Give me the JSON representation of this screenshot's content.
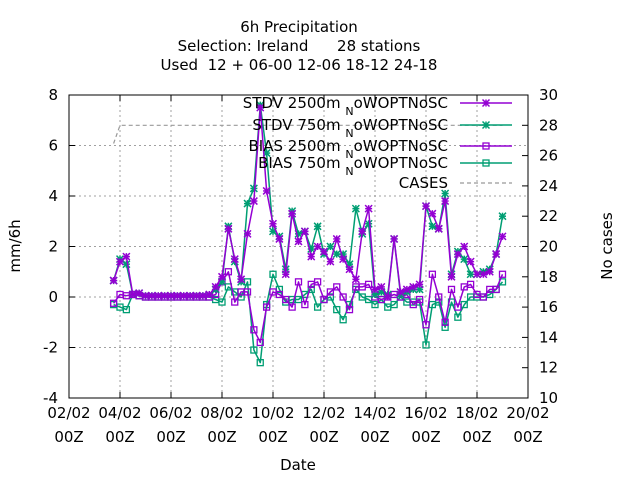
{
  "chart_data": {
    "type": "line",
    "title_lines": [
      "6h Precipitation",
      "Selection: Ireland      28 stations",
      "Used  12 + 06-00 12-06 18-12 24-18"
    ],
    "xlabel": "Date",
    "ylabel": "mm/6h",
    "y2label": "No cases",
    "ylim": [
      -4,
      8
    ],
    "y2lim": [
      10,
      30
    ],
    "xlim": [
      0,
      18
    ],
    "grid": true,
    "legend_position": "top-right",
    "x_ticks": [
      {
        "x": 0,
        "l1": "02/02",
        "l2": "00Z"
      },
      {
        "x": 2,
        "l1": "04/02",
        "l2": "00Z"
      },
      {
        "x": 4,
        "l1": "06/02",
        "l2": "00Z"
      },
      {
        "x": 6,
        "l1": "08/02",
        "l2": "00Z"
      },
      {
        "x": 8,
        "l1": "10/02",
        "l2": "00Z"
      },
      {
        "x": 10,
        "l1": "12/02",
        "l2": "00Z"
      },
      {
        "x": 12,
        "l1": "14/02",
        "l2": "00Z"
      },
      {
        "x": 14,
        "l1": "16/02",
        "l2": "00Z"
      },
      {
        "x": 16,
        "l1": "18/02",
        "l2": "00Z"
      },
      {
        "x": 18,
        "l1": "20/02",
        "l2": "00Z"
      }
    ],
    "y_ticks": [
      -4,
      -2,
      0,
      2,
      4,
      6,
      8
    ],
    "y2_ticks": [
      10,
      12,
      14,
      16,
      18,
      20,
      22,
      24,
      26,
      28,
      30
    ],
    "series": [
      {
        "name": "STDV 2500m",
        "name_sub": "N",
        "name_suffix": "oWOPTNoSC",
        "color": "#9400d3",
        "marker": "star",
        "axis": "y1",
        "points": [
          [
            1.75,
            0.65
          ],
          [
            2.0,
            1.4
          ],
          [
            2.25,
            1.6
          ],
          [
            2.5,
            0.1
          ],
          [
            2.75,
            0.15
          ],
          [
            3.0,
            0.05
          ],
          [
            3.25,
            0.05
          ],
          [
            3.5,
            0.05
          ],
          [
            3.75,
            0.05
          ],
          [
            4.0,
            0.05
          ],
          [
            4.25,
            0.05
          ],
          [
            4.5,
            0.05
          ],
          [
            4.75,
            0.05
          ],
          [
            5.0,
            0.05
          ],
          [
            5.25,
            0.05
          ],
          [
            5.5,
            0.1
          ],
          [
            5.75,
            0.4
          ],
          [
            6.0,
            0.8
          ],
          [
            6.25,
            2.7
          ],
          [
            6.5,
            1.5
          ],
          [
            6.75,
            0.7
          ],
          [
            7.0,
            2.5
          ],
          [
            7.25,
            3.8
          ],
          [
            7.5,
            7.5
          ],
          [
            7.75,
            4.2
          ],
          [
            8.0,
            2.9
          ],
          [
            8.25,
            2.3
          ],
          [
            8.5,
            0.9
          ],
          [
            8.75,
            3.3
          ],
          [
            9.0,
            2.2
          ],
          [
            9.25,
            2.6
          ],
          [
            9.5,
            1.6
          ],
          [
            9.75,
            2.0
          ],
          [
            10.0,
            1.8
          ],
          [
            10.25,
            1.4
          ],
          [
            10.5,
            2.3
          ],
          [
            10.75,
            1.5
          ],
          [
            11.0,
            1.1
          ],
          [
            11.25,
            0.7
          ],
          [
            11.5,
            2.6
          ],
          [
            11.75,
            3.5
          ],
          [
            12.0,
            0.3
          ],
          [
            12.25,
            0.4
          ],
          [
            12.5,
            0.0
          ],
          [
            12.75,
            2.3
          ],
          [
            13.0,
            0.2
          ],
          [
            13.25,
            0.3
          ],
          [
            13.5,
            0.4
          ],
          [
            13.75,
            0.5
          ],
          [
            14.0,
            3.6
          ],
          [
            14.25,
            3.3
          ],
          [
            14.5,
            2.7
          ],
          [
            14.75,
            3.8
          ],
          [
            15.0,
            0.8
          ],
          [
            15.25,
            1.7
          ],
          [
            15.5,
            2.0
          ],
          [
            15.75,
            1.4
          ],
          [
            16.0,
            0.9
          ],
          [
            16.25,
            0.9
          ],
          [
            16.5,
            1.0
          ],
          [
            16.75,
            1.7
          ],
          [
            17.0,
            2.4
          ]
        ]
      },
      {
        "name": "STDV 750m",
        "name_sub": "N",
        "name_suffix": "oWOPTNoSC",
        "color": "#009e73",
        "marker": "star",
        "axis": "y1",
        "points": [
          [
            1.75,
            0.65
          ],
          [
            2.0,
            1.5
          ],
          [
            2.25,
            1.3
          ],
          [
            2.5,
            0.1
          ],
          [
            2.75,
            0.15
          ],
          [
            3.0,
            0.05
          ],
          [
            3.25,
            0.05
          ],
          [
            3.5,
            0.05
          ],
          [
            3.75,
            0.05
          ],
          [
            4.0,
            0.05
          ],
          [
            4.25,
            0.05
          ],
          [
            4.5,
            0.05
          ],
          [
            4.75,
            0.05
          ],
          [
            5.0,
            0.05
          ],
          [
            5.25,
            0.05
          ],
          [
            5.5,
            0.1
          ],
          [
            5.75,
            0.3
          ],
          [
            6.0,
            0.6
          ],
          [
            6.25,
            2.8
          ],
          [
            6.5,
            1.4
          ],
          [
            6.75,
            0.6
          ],
          [
            7.0,
            3.7
          ],
          [
            7.25,
            4.3
          ],
          [
            7.5,
            7.6
          ],
          [
            7.75,
            5.7
          ],
          [
            8.0,
            2.6
          ],
          [
            8.25,
            2.4
          ],
          [
            8.5,
            1.1
          ],
          [
            8.75,
            3.4
          ],
          [
            9.0,
            2.5
          ],
          [
            9.25,
            2.6
          ],
          [
            9.5,
            1.9
          ],
          [
            9.75,
            2.8
          ],
          [
            10.0,
            1.7
          ],
          [
            10.25,
            2.0
          ],
          [
            10.5,
            1.7
          ],
          [
            10.75,
            1.7
          ],
          [
            11.0,
            1.3
          ],
          [
            11.25,
            3.5
          ],
          [
            11.5,
            2.5
          ],
          [
            11.75,
            2.9
          ],
          [
            12.0,
            0.1
          ],
          [
            12.25,
            0.2
          ],
          [
            12.5,
            0.1
          ],
          [
            12.75,
            2.3
          ],
          [
            13.0,
            0.1
          ],
          [
            13.25,
            0.2
          ],
          [
            13.5,
            0.3
          ],
          [
            13.75,
            0.3
          ],
          [
            14.0,
            3.6
          ],
          [
            14.25,
            2.8
          ],
          [
            14.5,
            2.7
          ],
          [
            14.75,
            4.1
          ],
          [
            15.0,
            0.9
          ],
          [
            15.25,
            1.8
          ],
          [
            15.5,
            1.5
          ],
          [
            15.75,
            0.9
          ],
          [
            16.0,
            0.9
          ],
          [
            16.25,
            1.0
          ],
          [
            16.5,
            1.1
          ],
          [
            16.75,
            1.7
          ],
          [
            17.0,
            3.2
          ]
        ]
      },
      {
        "name": "BIAS 2500m",
        "name_sub": "N",
        "name_suffix": "oWOPTNoSC",
        "color": "#9400d3",
        "marker": "square",
        "axis": "y1",
        "points": [
          [
            1.75,
            -0.25
          ],
          [
            2.0,
            0.1
          ],
          [
            2.25,
            0.05
          ],
          [
            2.5,
            0.1
          ],
          [
            2.75,
            0.05
          ],
          [
            3.0,
            0.0
          ],
          [
            3.25,
            0.0
          ],
          [
            3.5,
            0.0
          ],
          [
            3.75,
            0.0
          ],
          [
            4.0,
            0.0
          ],
          [
            4.25,
            0.0
          ],
          [
            4.5,
            0.0
          ],
          [
            4.75,
            0.0
          ],
          [
            5.0,
            0.0
          ],
          [
            5.25,
            0.0
          ],
          [
            5.5,
            0.0
          ],
          [
            5.75,
            0.1
          ],
          [
            6.0,
            0.6
          ],
          [
            6.25,
            1.0
          ],
          [
            6.5,
            -0.2
          ],
          [
            6.75,
            0.2
          ],
          [
            7.0,
            0.2
          ],
          [
            7.25,
            -1.3
          ],
          [
            7.5,
            -1.8
          ],
          [
            7.75,
            -0.4
          ],
          [
            8.0,
            0.2
          ],
          [
            8.25,
            0.1
          ],
          [
            8.5,
            -0.1
          ],
          [
            8.75,
            -0.4
          ],
          [
            9.0,
            0.6
          ],
          [
            9.25,
            -0.3
          ],
          [
            9.5,
            0.5
          ],
          [
            9.75,
            0.6
          ],
          [
            10.0,
            -0.1
          ],
          [
            10.25,
            0.2
          ],
          [
            10.5,
            0.4
          ],
          [
            10.75,
            0.0
          ],
          [
            11.0,
            -0.5
          ],
          [
            11.25,
            0.4
          ],
          [
            11.5,
            0.4
          ],
          [
            11.75,
            0.5
          ],
          [
            12.0,
            0.0
          ],
          [
            12.25,
            -0.1
          ],
          [
            12.5,
            0.0
          ],
          [
            12.75,
            0.1
          ],
          [
            13.0,
            0.0
          ],
          [
            13.25,
            0.1
          ],
          [
            13.5,
            -0.3
          ],
          [
            13.75,
            -0.1
          ],
          [
            14.0,
            -1.1
          ],
          [
            14.25,
            0.9
          ],
          [
            14.5,
            0.0
          ],
          [
            14.75,
            -1.0
          ],
          [
            15.0,
            0.3
          ],
          [
            15.25,
            -0.4
          ],
          [
            15.5,
            0.4
          ],
          [
            15.75,
            0.5
          ],
          [
            16.0,
            0.1
          ],
          [
            16.25,
            0.0
          ],
          [
            16.5,
            0.3
          ],
          [
            16.75,
            0.3
          ],
          [
            17.0,
            0.9
          ]
        ]
      },
      {
        "name": "BIAS 750m",
        "name_sub": "N",
        "name_suffix": "oWOPTNoSC",
        "color": "#009e73",
        "marker": "square",
        "axis": "y1",
        "points": [
          [
            1.75,
            -0.3
          ],
          [
            2.0,
            -0.4
          ],
          [
            2.25,
            -0.5
          ],
          [
            2.5,
            0.1
          ],
          [
            2.75,
            0.05
          ],
          [
            3.0,
            0.0
          ],
          [
            3.25,
            0.0
          ],
          [
            3.5,
            0.0
          ],
          [
            3.75,
            0.0
          ],
          [
            4.0,
            0.0
          ],
          [
            4.25,
            0.0
          ],
          [
            4.5,
            0.0
          ],
          [
            4.75,
            0.0
          ],
          [
            5.0,
            0.0
          ],
          [
            5.25,
            0.0
          ],
          [
            5.5,
            0.0
          ],
          [
            5.75,
            -0.1
          ],
          [
            6.0,
            -0.2
          ],
          [
            6.25,
            0.4
          ],
          [
            6.5,
            0.2
          ],
          [
            6.75,
            0.0
          ],
          [
            7.0,
            0.6
          ],
          [
            7.25,
            -2.1
          ],
          [
            7.5,
            -2.6
          ],
          [
            7.75,
            -0.3
          ],
          [
            8.0,
            0.9
          ],
          [
            8.25,
            0.3
          ],
          [
            8.5,
            -0.2
          ],
          [
            8.75,
            -0.1
          ],
          [
            9.0,
            -0.1
          ],
          [
            9.25,
            0.1
          ],
          [
            9.5,
            0.3
          ],
          [
            9.75,
            -0.4
          ],
          [
            10.0,
            -0.1
          ],
          [
            10.25,
            0.0
          ],
          [
            10.5,
            -0.5
          ],
          [
            10.75,
            -0.9
          ],
          [
            11.0,
            -0.3
          ],
          [
            11.25,
            0.3
          ],
          [
            11.5,
            0.0
          ],
          [
            11.75,
            -0.1
          ],
          [
            12.0,
            -0.3
          ],
          [
            12.25,
            -0.1
          ],
          [
            12.5,
            -0.4
          ],
          [
            12.75,
            -0.3
          ],
          [
            13.0,
            0.0
          ],
          [
            13.25,
            -0.2
          ],
          [
            13.5,
            -0.2
          ],
          [
            13.75,
            -0.2
          ],
          [
            14.0,
            -1.9
          ],
          [
            14.25,
            -0.3
          ],
          [
            14.5,
            -0.2
          ],
          [
            14.75,
            -1.2
          ],
          [
            15.0,
            -0.2
          ],
          [
            15.25,
            -0.8
          ],
          [
            15.5,
            -0.3
          ],
          [
            15.75,
            0.0
          ],
          [
            16.0,
            0.0
          ],
          [
            16.25,
            0.0
          ],
          [
            16.5,
            0.1
          ],
          [
            16.75,
            0.3
          ],
          [
            17.0,
            0.6
          ]
        ]
      },
      {
        "name": "CASES",
        "color": "#999999",
        "marker": "none",
        "dashed": true,
        "axis": "y2",
        "points": [
          [
            1.75,
            26.8
          ],
          [
            2.0,
            28.0
          ],
          [
            4.0,
            28.0
          ],
          [
            8.0,
            28.0
          ],
          [
            12.0,
            28.0
          ],
          [
            16.0,
            28.0
          ],
          [
            17.0,
            28.0
          ]
        ]
      }
    ]
  }
}
